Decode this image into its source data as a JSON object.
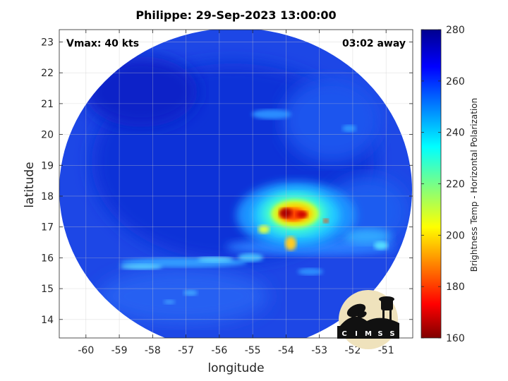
{
  "map": {
    "title": "Philippe: 29-Sep-2023 13:00:00",
    "vmax_label": "Vmax: 40 kts",
    "time_label": "03:02 away",
    "xlabel": "longitude",
    "ylabel": "latitude",
    "lon_range": [
      -60.8,
      -50.2
    ],
    "lat_range": [
      13.4,
      23.4
    ],
    "lon_ticks": [
      -60,
      -59,
      -58,
      -57,
      -56,
      -55,
      -54,
      -53,
      -52,
      -51
    ],
    "lat_ticks": [
      14,
      15,
      16,
      17,
      18,
      19,
      20,
      21,
      22,
      23
    ],
    "grid": true,
    "storm_center": {
      "lon": -53.9,
      "lat": 17.3
    }
  },
  "colorbar": {
    "label": "Brightness Temp - Horizontal Polarization",
    "range": [
      160,
      280
    ],
    "ticks": [
      160,
      180,
      200,
      220,
      240,
      260,
      280
    ],
    "colormap": "jet"
  },
  "logo": {
    "text": "CIMSS",
    "letters": [
      "C",
      "I",
      "M",
      "S",
      "S"
    ]
  }
}
